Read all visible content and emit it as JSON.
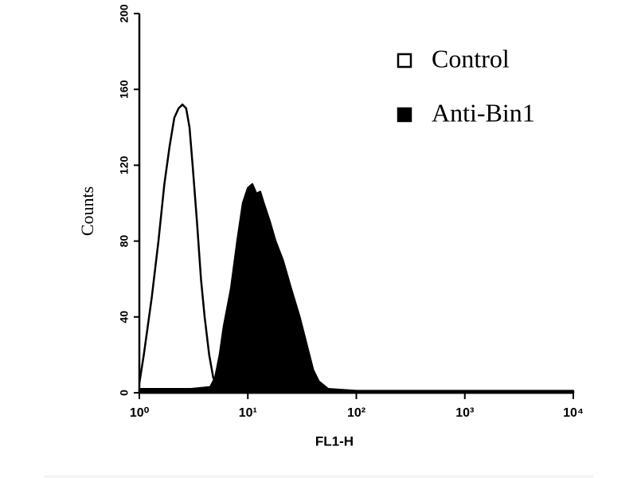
{
  "chart_data": {
    "type": "area",
    "log_x": true,
    "x_label": "FL1-H",
    "y_label": "Counts",
    "xlim": [
      1,
      10000
    ],
    "xticks": [
      {
        "value": 1,
        "label": "10⁰"
      },
      {
        "value": 10,
        "label": "10¹"
      },
      {
        "value": 100,
        "label": "10²"
      },
      {
        "value": 1000,
        "label": "10³"
      },
      {
        "value": 10000,
        "label": "10⁴"
      }
    ],
    "ylim": [
      0,
      200
    ],
    "yticks": [
      0,
      40,
      80,
      120,
      160,
      200
    ],
    "legend": "top-right",
    "series": [
      {
        "name": "Anti-Bin1",
        "color": "#000000",
        "filled": true,
        "x": [
          1,
          3,
          4.5,
          5,
          5.5,
          6,
          7,
          8,
          9,
          10,
          11,
          12,
          13,
          14,
          16,
          18,
          21,
          25,
          30,
          35,
          40,
          45,
          55,
          100,
          10000
        ],
        "values": [
          2,
          2,
          3,
          8,
          20,
          35,
          55,
          80,
          100,
          108,
          110,
          105,
          106,
          100,
          90,
          80,
          70,
          55,
          40,
          25,
          12,
          6,
          2,
          1,
          1
        ]
      },
      {
        "name": "Control",
        "color": "#000000",
        "filled": false,
        "x": [
          1,
          1.1,
          1.3,
          1.5,
          1.7,
          1.9,
          2.1,
          2.3,
          2.5,
          2.7,
          2.9,
          3.1,
          3.4,
          3.7,
          4,
          4.4,
          4.8,
          5.3,
          6
        ],
        "values": [
          5,
          20,
          50,
          80,
          110,
          130,
          145,
          150,
          152,
          150,
          140,
          120,
          90,
          60,
          40,
          20,
          8,
          3,
          1
        ]
      }
    ]
  }
}
